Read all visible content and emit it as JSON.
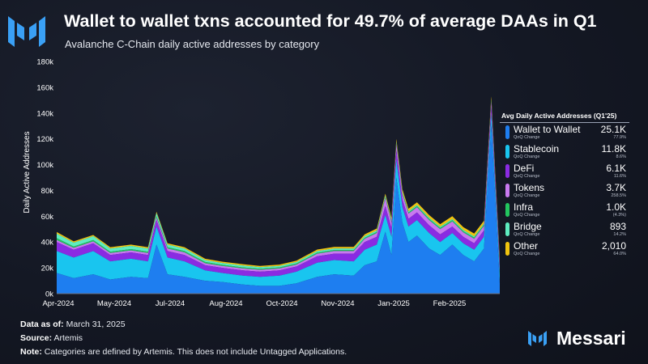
{
  "header": {
    "title": "Wallet to wallet txns accounted for 49.7% of average DAAs in Q1",
    "subtitle": "Avalanche C-Chain daily active addresses by category",
    "logo_icon": "messari-logo-icon"
  },
  "chart_data": {
    "type": "area",
    "stacked": true,
    "ylabel": "Daily Active Addresses",
    "ylim": [
      0,
      180000
    ],
    "y_ticks": [
      "0k",
      "20k",
      "40k",
      "60k",
      "80k",
      "100k",
      "120k",
      "140k",
      "160k",
      "180k"
    ],
    "x_ticks": [
      "Apr-2024",
      "May-2024",
      "Jul-2024",
      "Aug-2024",
      "Oct-2024",
      "Nov-2024",
      "Jan-2025",
      "Feb-2025"
    ],
    "x_range": [
      "2024-04-01",
      "2025-03-31"
    ],
    "grid": false,
    "x": [
      "2024-04-01",
      "2024-04-15",
      "2024-05-01",
      "2024-05-15",
      "2024-06-01",
      "2024-06-15",
      "2024-06-22",
      "2024-07-01",
      "2024-07-15",
      "2024-08-01",
      "2024-08-15",
      "2024-09-01",
      "2024-09-15",
      "2024-10-01",
      "2024-10-15",
      "2024-11-01",
      "2024-11-15",
      "2024-12-01",
      "2024-12-10",
      "2024-12-20",
      "2024-12-27",
      "2025-01-01",
      "2025-01-05",
      "2025-01-10",
      "2025-01-15",
      "2025-01-22",
      "2025-02-01",
      "2025-02-10",
      "2025-02-20",
      "2025-03-01",
      "2025-03-10",
      "2025-03-18",
      "2025-03-24",
      "2025-03-31"
    ],
    "series": [
      {
        "name": "Wallet to Wallet",
        "color": "#1e7ef0",
        "values": [
          16000,
          12000,
          15000,
          11000,
          13000,
          12000,
          38000,
          15000,
          13000,
          10000,
          9000,
          7000,
          6000,
          6000,
          8000,
          13000,
          15000,
          14000,
          22000,
          25000,
          48000,
          30000,
          90000,
          55000,
          40000,
          45000,
          35000,
          30000,
          38000,
          30000,
          25000,
          35000,
          130000,
          8000
        ]
      },
      {
        "name": "Stablecoin",
        "color": "#19c5ef",
        "values": [
          17000,
          16000,
          18000,
          14000,
          14000,
          13000,
          14000,
          13000,
          12000,
          8000,
          7000,
          7000,
          7000,
          8000,
          9000,
          11000,
          11000,
          11000,
          12000,
          13000,
          13000,
          14000,
          14000,
          12000,
          12000,
          12000,
          12000,
          10000,
          9000,
          9000,
          9000,
          9000,
          9000,
          8000
        ]
      },
      {
        "name": "DeFi",
        "color": "#8a2be2",
        "values": [
          7000,
          6000,
          6000,
          5000,
          5000,
          5000,
          5000,
          5000,
          5000,
          4000,
          4000,
          4000,
          4000,
          4000,
          4000,
          5000,
          5000,
          6000,
          6000,
          6000,
          7000,
          7000,
          7000,
          6000,
          6000,
          6000,
          6000,
          6000,
          5000,
          5000,
          5000,
          5000,
          6000,
          5000
        ]
      },
      {
        "name": "Tokens",
        "color": "#c879ef",
        "values": [
          1500,
          1500,
          1500,
          1500,
          1500,
          1500,
          2000,
          2000,
          2000,
          1500,
          1500,
          1500,
          1500,
          1500,
          1500,
          2000,
          2000,
          2000,
          2500,
          3000,
          6000,
          4000,
          5000,
          4000,
          4000,
          4000,
          4000,
          4000,
          4000,
          3500,
          3500,
          3500,
          4000,
          3000
        ]
      },
      {
        "name": "Infra",
        "color": "#22c55e",
        "values": [
          1500,
          1000,
          1000,
          1000,
          1000,
          1000,
          1000,
          1000,
          1000,
          1000,
          800,
          800,
          800,
          800,
          800,
          800,
          800,
          800,
          800,
          800,
          800,
          900,
          900,
          900,
          900,
          900,
          1000,
          1000,
          1000,
          1000,
          1000,
          1000,
          1000,
          1000
        ]
      },
      {
        "name": "Bridge",
        "color": "#5eecc0",
        "values": [
          3500,
          3000,
          3000,
          2500,
          2500,
          2500,
          2500,
          2000,
          2000,
          1500,
          1500,
          1500,
          1200,
          1200,
          1200,
          1200,
          1200,
          1200,
          1200,
          1200,
          1200,
          1000,
          1000,
          1000,
          900,
          900,
          900,
          900,
          900,
          900,
          900,
          800,
          800,
          800
        ]
      },
      {
        "name": "Other",
        "color": "#f1c40f",
        "values": [
          1200,
          1000,
          1000,
          1000,
          1000,
          1000,
          1000,
          1000,
          1000,
          1000,
          1000,
          1000,
          1000,
          1000,
          1000,
          1200,
          1200,
          1200,
          1500,
          1500,
          1500,
          2000,
          2000,
          2000,
          2000,
          2000,
          2000,
          2000,
          2200,
          2200,
          2200,
          2200,
          2200,
          2000
        ]
      }
    ]
  },
  "legend": {
    "title": "Avg Daily Active Addresses (Q1'25)",
    "items": [
      {
        "name": "Wallet to Wallet",
        "sub": "QoQ Change",
        "value": "25.1K",
        "change": "77.9%",
        "color": "#1e7ef0"
      },
      {
        "name": "Stablecoin",
        "sub": "QoQ Change",
        "value": "11.8K",
        "change": "8.6%",
        "color": "#19c5ef"
      },
      {
        "name": "DeFi",
        "sub": "QoQ Change",
        "value": "6.1K",
        "change": "11.6%",
        "color": "#8a2be2"
      },
      {
        "name": "Tokens",
        "sub": "QoQ Change",
        "value": "3.7K",
        "change": "258.5%",
        "color": "#c879ef"
      },
      {
        "name": "Infra",
        "sub": "QoQ Change",
        "value": "1.0K",
        "change": "(4.3%)",
        "color": "#22c55e"
      },
      {
        "name": "Bridge",
        "sub": "QoQ Change",
        "value": "893",
        "change": "14.2%",
        "color": "#5eecc0"
      },
      {
        "name": "Other",
        "sub": "QoQ Change",
        "value": "2,010",
        "change": "64.0%",
        "color": "#f1c40f"
      }
    ]
  },
  "footer": {
    "data_label": "Data as of:",
    "data_value": "March 31, 2025",
    "source_label": "Source:",
    "source_value": "Artemis",
    "note_label": "Note:",
    "note_value": "Categories are defined by Artemis. This does not include Untagged Applications."
  },
  "brand": {
    "name": "Messari",
    "logo_icon": "messari-logo-icon"
  }
}
